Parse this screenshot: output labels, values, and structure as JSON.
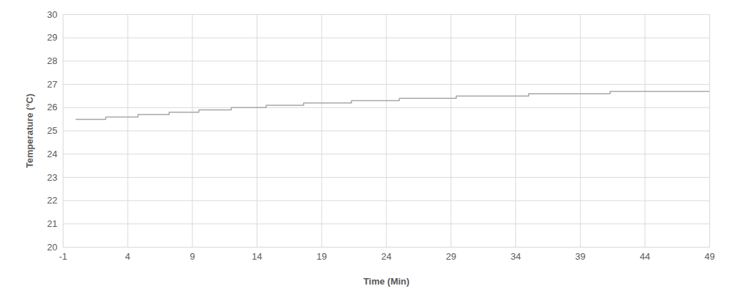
{
  "chart_data": {
    "type": "line",
    "x_label": "Time (Min)",
    "y_label": "Temperature (°C)",
    "x": [
      0,
      2.3,
      4.8,
      7.2,
      9.5,
      12.0,
      14.7,
      17.6,
      21.3,
      25.0,
      29.4,
      35.0,
      41.3,
      49
    ],
    "values": [
      25.5,
      25.6,
      25.7,
      25.8,
      25.9,
      26.0,
      26.1,
      26.2,
      26.3,
      26.4,
      26.5,
      26.6,
      26.7,
      26.7
    ],
    "color": "#a6a6a6",
    "line_style": "step",
    "xlim": [
      -1,
      49
    ],
    "xticks": [
      -1,
      4,
      9,
      14,
      19,
      24,
      29,
      34,
      39,
      44,
      49
    ],
    "ylim": [
      20,
      30
    ],
    "yticks": [
      20,
      21,
      22,
      23,
      24,
      25,
      26,
      27,
      28,
      29,
      30
    ],
    "grid": true
  }
}
